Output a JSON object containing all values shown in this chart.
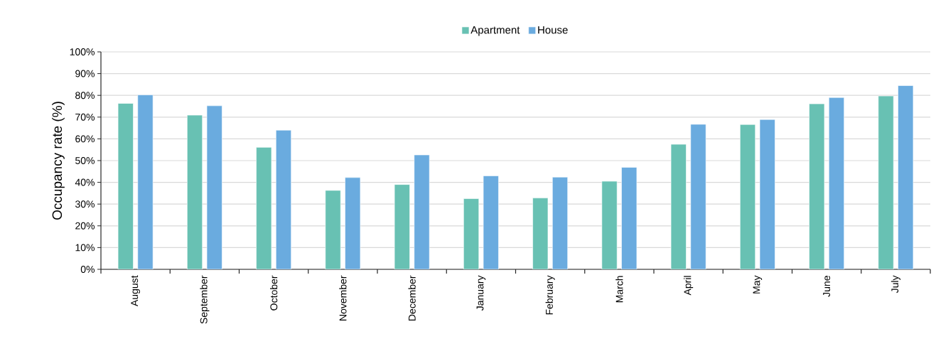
{
  "chart_data": {
    "type": "bar",
    "ylabel": "Occupancy rate (%)",
    "categories": [
      "August",
      "September",
      "October",
      "November",
      "December",
      "January",
      "February",
      "March",
      "April",
      "May",
      "June",
      "July"
    ],
    "series": [
      {
        "name": "Apartment",
        "color": "#68c1b3",
        "values": [
          76.3,
          70.9,
          56.1,
          36.3,
          39.0,
          32.5,
          32.8,
          40.5,
          57.5,
          66.6,
          76.1,
          79.7
        ]
      },
      {
        "name": "House",
        "color": "#6aabdf",
        "values": [
          80.2,
          75.2,
          64.0,
          42.2,
          52.6,
          43.0,
          42.4,
          46.9,
          66.7,
          68.9,
          79.0,
          84.5
        ]
      }
    ],
    "ylim": [
      0,
      100
    ],
    "yticks": [
      {
        "value": 0,
        "label": "0%"
      },
      {
        "value": 10,
        "label": "10%"
      },
      {
        "value": 20,
        "label": "20%"
      },
      {
        "value": 30,
        "label": "30%"
      },
      {
        "value": 40,
        "label": "40%"
      },
      {
        "value": 50,
        "label": "50%"
      },
      {
        "value": 60,
        "label": "60%"
      },
      {
        "value": 70,
        "label": "70%"
      },
      {
        "value": 80,
        "label": "80%"
      },
      {
        "value": 90,
        "label": "90%"
      },
      {
        "value": 100,
        "label": "100%"
      }
    ],
    "grid": "y",
    "legend": "top"
  }
}
